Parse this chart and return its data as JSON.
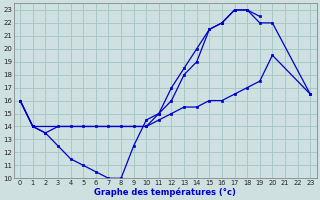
{
  "xlabel": "Graphe des températures (°c)",
  "bg_color": "#cfe0e0",
  "line_color": "#0000cc",
  "grid_color": "#a8c8c8",
  "xmin": 0,
  "xmax": 23,
  "ymin": 10,
  "ymax": 23,
  "lines": [
    [
      0,
      16,
      1,
      14,
      2,
      13.5,
      3,
      12.5,
      4,
      11.5,
      5,
      11,
      6,
      10.5,
      7,
      10,
      8,
      10,
      9,
      12.5,
      10,
      14.5,
      11,
      15,
      12,
      17,
      13,
      18.5,
      14,
      20,
      15,
      21.5,
      16,
      22,
      17,
      23,
      18,
      23,
      19,
      22.5
    ],
    [
      0,
      16,
      1,
      14,
      10,
      14,
      11,
      15,
      12,
      16,
      13,
      18,
      14,
      19,
      15,
      21.5,
      16,
      22,
      17,
      23,
      18,
      23,
      19,
      22,
      20,
      22,
      23,
      16.5
    ],
    [
      0,
      16,
      1,
      14,
      2,
      13.5,
      3,
      14,
      4,
      14,
      5,
      14,
      6,
      14,
      7,
      14,
      8,
      14,
      9,
      14,
      10,
      14,
      11,
      14.5,
      12,
      15,
      13,
      15.5,
      14,
      15.5,
      15,
      16,
      16,
      16,
      17,
      16.5,
      18,
      17,
      19,
      17.5,
      20,
      19.5,
      23,
      16.5
    ]
  ]
}
